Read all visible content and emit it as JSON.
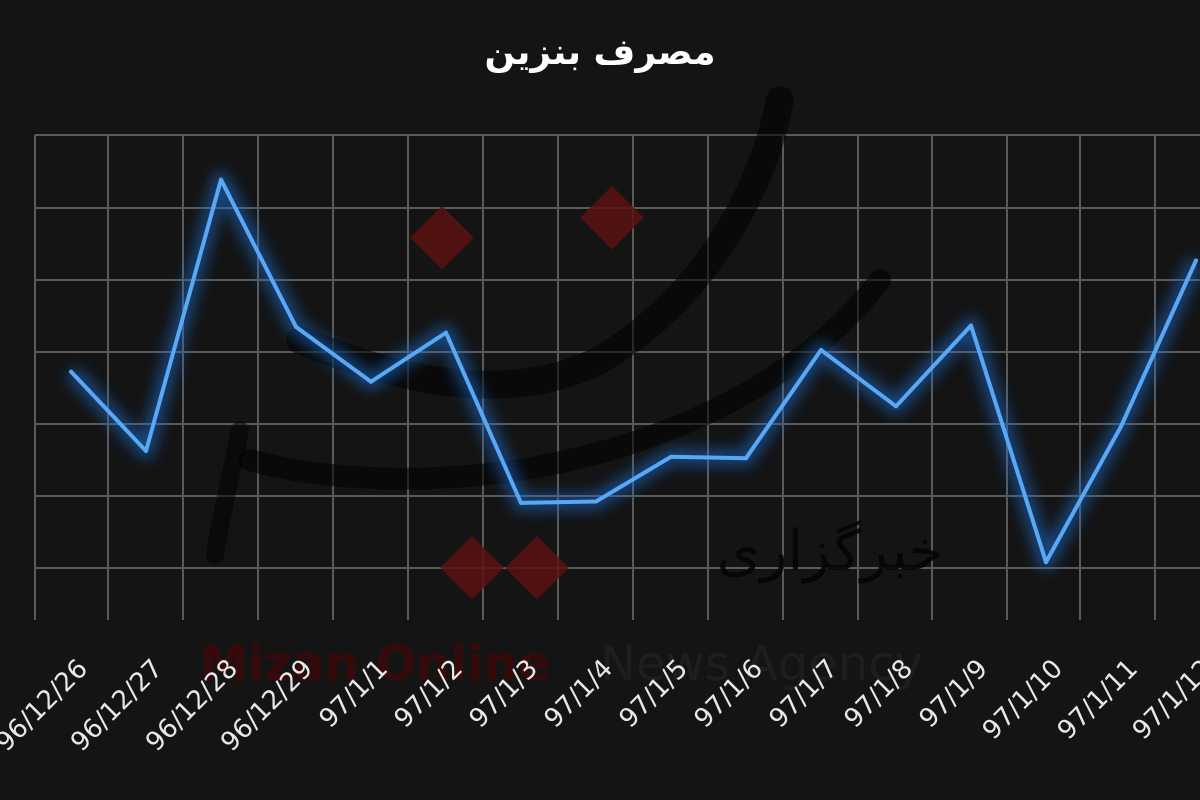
{
  "chart_data": {
    "type": "line",
    "title": "مصرف بنزین",
    "categories": [
      "96/12/26",
      "96/12/27",
      "96/12/28",
      "96/12/29",
      "97/1/1",
      "97/1/2",
      "97/1/3",
      "97/1/4",
      "97/1/5",
      "97/1/6",
      "97/1/7",
      "97/1/8",
      "97/1/9",
      "97/1/10",
      "97/1/11",
      "97/1/12"
    ],
    "series": [
      {
        "values": [
          58.6,
          53.1,
          71.9,
          61.7,
          57.9,
          61.3,
          49.5,
          49.6,
          52.7,
          52.6,
          60.1,
          56.2,
          61.8,
          45.4,
          54.8,
          66.3
        ]
      }
    ],
    "ylim": [
      40,
      75
    ],
    "xlabel": "",
    "ylabel": "",
    "grid": true,
    "line_color": "#58a8f5",
    "background": "#141414"
  },
  "watermark": {
    "farsi": "خبرگزاری",
    "latin_red": "Mizan Online",
    "latin_gray": "News Agency"
  }
}
